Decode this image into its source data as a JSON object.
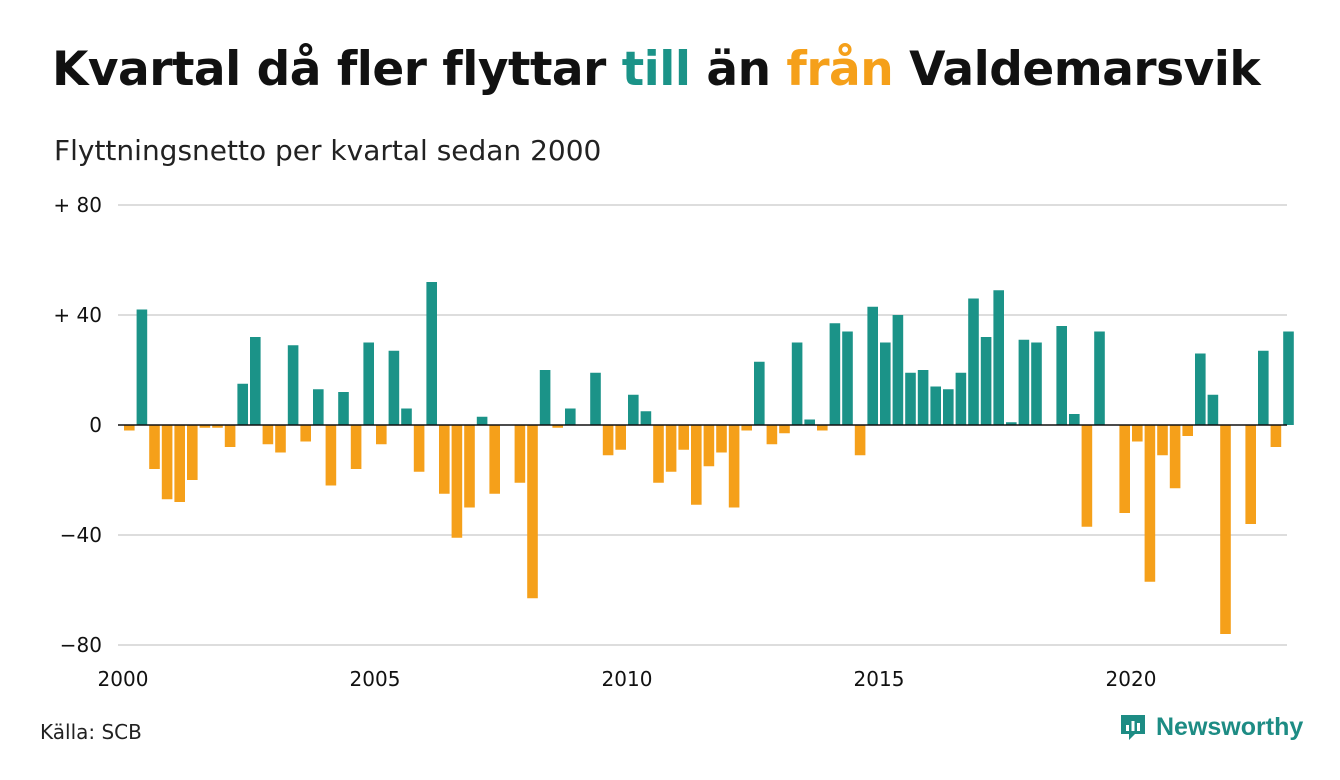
{
  "title": {
    "part1": "Kvartal då fler flyttar ",
    "word_to": "till",
    "part2": " än ",
    "word_from": "från",
    "part3": " Valdemarsvik"
  },
  "subtitle": "Flyttningsnetto per kvartal sedan 2000",
  "source": "Källa: SCB",
  "brand": {
    "name": "Newsworthy",
    "icon": "newsworthy-chart-bubble-icon"
  },
  "colors": {
    "positive": "#1b9388",
    "negative": "#f5a01a",
    "grid": "#dddddd",
    "zero_line": "#111111"
  },
  "chart_data": {
    "type": "bar",
    "x_start_year": 2000,
    "quarters_per_year": 4,
    "ylim": [
      -80,
      80
    ],
    "y_ticks": [
      {
        "value": 80,
        "label": "+ 80"
      },
      {
        "value": 40,
        "label": "+ 40"
      },
      {
        "value": 0,
        "label": "0"
      },
      {
        "value": -40,
        "label": "−40"
      },
      {
        "value": -80,
        "label": "−80"
      }
    ],
    "x_ticks": [
      {
        "year": 2000,
        "label": "2000"
      },
      {
        "year": 2005,
        "label": "2005"
      },
      {
        "year": 2010,
        "label": "2010"
      },
      {
        "year": 2015,
        "label": "2015"
      },
      {
        "year": 2020,
        "label": "2020"
      }
    ],
    "values": [
      -2,
      42,
      -16,
      -27,
      -28,
      -20,
      -1,
      -1,
      -8,
      15,
      32,
      -7,
      -10,
      29,
      -6,
      13,
      -22,
      12,
      -16,
      30,
      -7,
      27,
      6,
      -17,
      52,
      -25,
      -41,
      -30,
      3,
      -25,
      0,
      -21,
      -63,
      20,
      -1,
      6,
      0,
      19,
      -11,
      -9,
      11,
      5,
      -21,
      -17,
      -9,
      -29,
      -15,
      -10,
      -30,
      -2,
      23,
      -7,
      -3,
      30,
      2,
      -2,
      37,
      34,
      -11,
      43,
      30,
      40,
      19,
      20,
      14,
      13,
      19,
      46,
      32,
      49,
      1,
      31,
      30,
      0,
      36,
      4,
      -37,
      34,
      0,
      -32,
      -6,
      -57,
      -11,
      -23,
      -4,
      26,
      11,
      -76,
      0,
      -36,
      27,
      -8,
      34
    ]
  }
}
